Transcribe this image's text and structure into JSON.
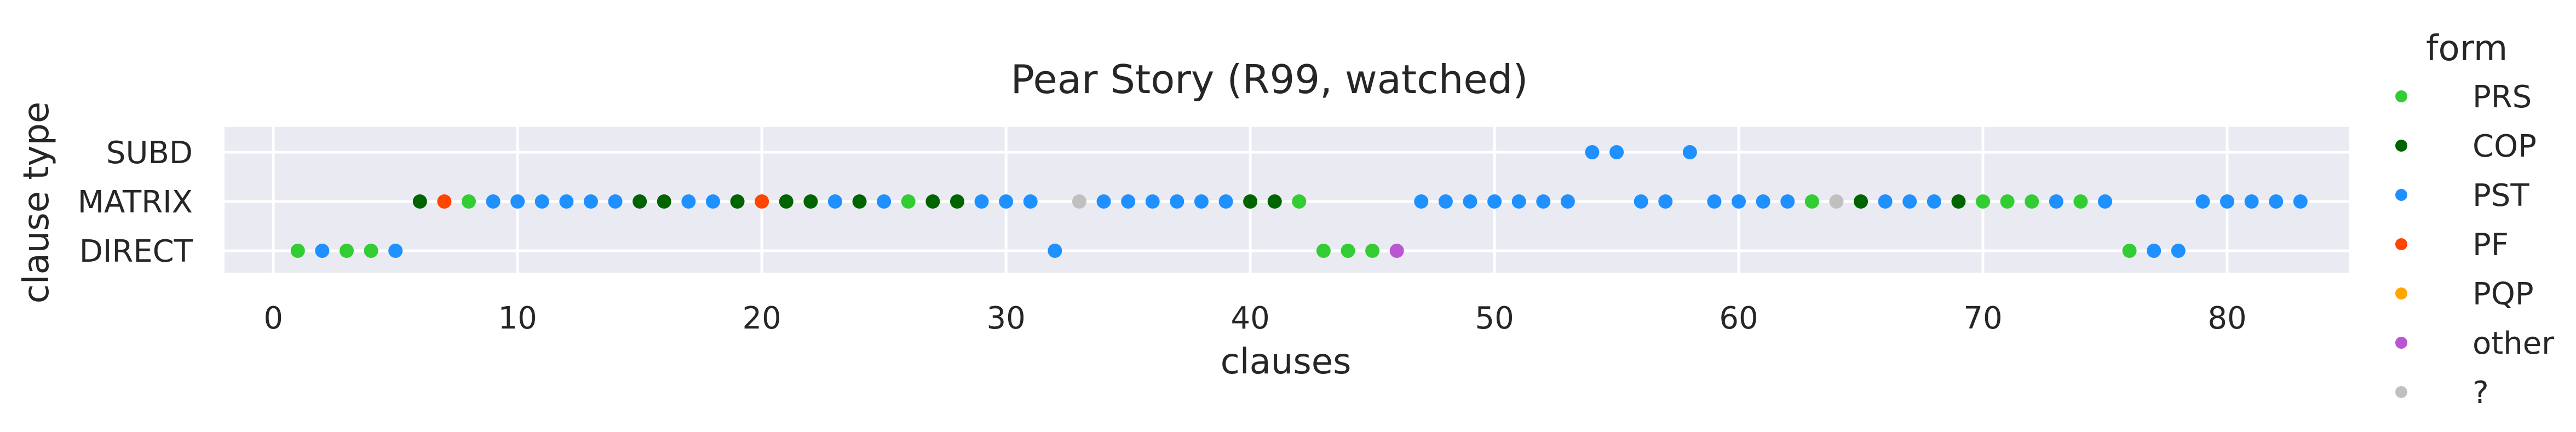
{
  "chart_data": {
    "type": "scatter",
    "title": "Pear Story (R99, watched)",
    "xlabel": "clauses",
    "ylabel": "clause type",
    "xlim": [
      -2,
      85
    ],
    "xticks": [
      0,
      10,
      20,
      30,
      40,
      50,
      60,
      70,
      80
    ],
    "categories_y": [
      "SUBD",
      "MATRIX",
      "DIRECT"
    ],
    "grid": true,
    "legend": {
      "title": "form",
      "placement": "outside-right",
      "entries": [
        {
          "label": "PRS",
          "color": "#32cd32"
        },
        {
          "label": "COP",
          "color": "#006400"
        },
        {
          "label": "PST",
          "color": "#1e90ff"
        },
        {
          "label": "PF",
          "color": "#ff4500"
        },
        {
          "label": "PQP",
          "color": "#ffa500"
        },
        {
          "label": "other",
          "color": "#ba55d3"
        },
        {
          "label": "?",
          "color": "#c0c0c0"
        }
      ]
    },
    "points": [
      {
        "x": 1,
        "y": "DIRECT",
        "form": "PRS"
      },
      {
        "x": 2,
        "y": "DIRECT",
        "form": "PST"
      },
      {
        "x": 3,
        "y": "DIRECT",
        "form": "PRS"
      },
      {
        "x": 4,
        "y": "DIRECT",
        "form": "PRS"
      },
      {
        "x": 5,
        "y": "DIRECT",
        "form": "PST"
      },
      {
        "x": 6,
        "y": "MATRIX",
        "form": "COP"
      },
      {
        "x": 7,
        "y": "MATRIX",
        "form": "PF"
      },
      {
        "x": 8,
        "y": "MATRIX",
        "form": "PRS"
      },
      {
        "x": 9,
        "y": "MATRIX",
        "form": "PST"
      },
      {
        "x": 10,
        "y": "MATRIX",
        "form": "PST"
      },
      {
        "x": 11,
        "y": "MATRIX",
        "form": "PST"
      },
      {
        "x": 12,
        "y": "MATRIX",
        "form": "PST"
      },
      {
        "x": 13,
        "y": "MATRIX",
        "form": "PST"
      },
      {
        "x": 14,
        "y": "MATRIX",
        "form": "PST"
      },
      {
        "x": 15,
        "y": "MATRIX",
        "form": "COP"
      },
      {
        "x": 16,
        "y": "MATRIX",
        "form": "COP"
      },
      {
        "x": 17,
        "y": "MATRIX",
        "form": "PST"
      },
      {
        "x": 18,
        "y": "MATRIX",
        "form": "PST"
      },
      {
        "x": 19,
        "y": "MATRIX",
        "form": "COP"
      },
      {
        "x": 20,
        "y": "MATRIX",
        "form": "PF"
      },
      {
        "x": 21,
        "y": "MATRIX",
        "form": "COP"
      },
      {
        "x": 22,
        "y": "MATRIX",
        "form": "COP"
      },
      {
        "x": 23,
        "y": "MATRIX",
        "form": "PST"
      },
      {
        "x": 24,
        "y": "MATRIX",
        "form": "COP"
      },
      {
        "x": 25,
        "y": "MATRIX",
        "form": "PST"
      },
      {
        "x": 26,
        "y": "MATRIX",
        "form": "PRS"
      },
      {
        "x": 27,
        "y": "MATRIX",
        "form": "COP"
      },
      {
        "x": 28,
        "y": "MATRIX",
        "form": "COP"
      },
      {
        "x": 29,
        "y": "MATRIX",
        "form": "PST"
      },
      {
        "x": 30,
        "y": "MATRIX",
        "form": "PST"
      },
      {
        "x": 31,
        "y": "MATRIX",
        "form": "PST"
      },
      {
        "x": 32,
        "y": "DIRECT",
        "form": "PST"
      },
      {
        "x": 33,
        "y": "MATRIX",
        "form": "?"
      },
      {
        "x": 34,
        "y": "MATRIX",
        "form": "PST"
      },
      {
        "x": 35,
        "y": "MATRIX",
        "form": "PST"
      },
      {
        "x": 36,
        "y": "MATRIX",
        "form": "PST"
      },
      {
        "x": 37,
        "y": "MATRIX",
        "form": "PST"
      },
      {
        "x": 38,
        "y": "MATRIX",
        "form": "PST"
      },
      {
        "x": 39,
        "y": "MATRIX",
        "form": "PST"
      },
      {
        "x": 40,
        "y": "MATRIX",
        "form": "COP"
      },
      {
        "x": 41,
        "y": "MATRIX",
        "form": "COP"
      },
      {
        "x": 42,
        "y": "MATRIX",
        "form": "PRS"
      },
      {
        "x": 43,
        "y": "DIRECT",
        "form": "PRS"
      },
      {
        "x": 44,
        "y": "DIRECT",
        "form": "PRS"
      },
      {
        "x": 45,
        "y": "DIRECT",
        "form": "PRS"
      },
      {
        "x": 46,
        "y": "DIRECT",
        "form": "other"
      },
      {
        "x": 47,
        "y": "MATRIX",
        "form": "PST"
      },
      {
        "x": 48,
        "y": "MATRIX",
        "form": "PST"
      },
      {
        "x": 49,
        "y": "MATRIX",
        "form": "PST"
      },
      {
        "x": 50,
        "y": "MATRIX",
        "form": "PST"
      },
      {
        "x": 51,
        "y": "MATRIX",
        "form": "PST"
      },
      {
        "x": 52,
        "y": "MATRIX",
        "form": "PST"
      },
      {
        "x": 53,
        "y": "MATRIX",
        "form": "PST"
      },
      {
        "x": 54,
        "y": "SUBD",
        "form": "PST"
      },
      {
        "x": 55,
        "y": "SUBD",
        "form": "PST"
      },
      {
        "x": 56,
        "y": "MATRIX",
        "form": "PST"
      },
      {
        "x": 57,
        "y": "MATRIX",
        "form": "PST"
      },
      {
        "x": 58,
        "y": "SUBD",
        "form": "PST"
      },
      {
        "x": 59,
        "y": "MATRIX",
        "form": "PST"
      },
      {
        "x": 60,
        "y": "MATRIX",
        "form": "PST"
      },
      {
        "x": 61,
        "y": "MATRIX",
        "form": "PST"
      },
      {
        "x": 62,
        "y": "MATRIX",
        "form": "PST"
      },
      {
        "x": 63,
        "y": "MATRIX",
        "form": "PRS"
      },
      {
        "x": 64,
        "y": "MATRIX",
        "form": "?"
      },
      {
        "x": 65,
        "y": "MATRIX",
        "form": "COP"
      },
      {
        "x": 66,
        "y": "MATRIX",
        "form": "PST"
      },
      {
        "x": 67,
        "y": "MATRIX",
        "form": "PST"
      },
      {
        "x": 68,
        "y": "MATRIX",
        "form": "PST"
      },
      {
        "x": 69,
        "y": "MATRIX",
        "form": "COP"
      },
      {
        "x": 70,
        "y": "MATRIX",
        "form": "PRS"
      },
      {
        "x": 71,
        "y": "MATRIX",
        "form": "PRS"
      },
      {
        "x": 72,
        "y": "MATRIX",
        "form": "PRS"
      },
      {
        "x": 73,
        "y": "MATRIX",
        "form": "PST"
      },
      {
        "x": 74,
        "y": "MATRIX",
        "form": "PRS"
      },
      {
        "x": 75,
        "y": "MATRIX",
        "form": "PST"
      },
      {
        "x": 76,
        "y": "DIRECT",
        "form": "PRS"
      },
      {
        "x": 77,
        "y": "DIRECT",
        "form": "PST"
      },
      {
        "x": 78,
        "y": "DIRECT",
        "form": "PST"
      },
      {
        "x": 79,
        "y": "MATRIX",
        "form": "PST"
      },
      {
        "x": 80,
        "y": "MATRIX",
        "form": "PST"
      },
      {
        "x": 81,
        "y": "MATRIX",
        "form": "PST"
      },
      {
        "x": 82,
        "y": "MATRIX",
        "form": "PST"
      },
      {
        "x": 83,
        "y": "MATRIX",
        "form": "PST"
      }
    ],
    "colors": {
      "plot_background": "#eaeaf2",
      "grid": "#ffffff"
    }
  }
}
